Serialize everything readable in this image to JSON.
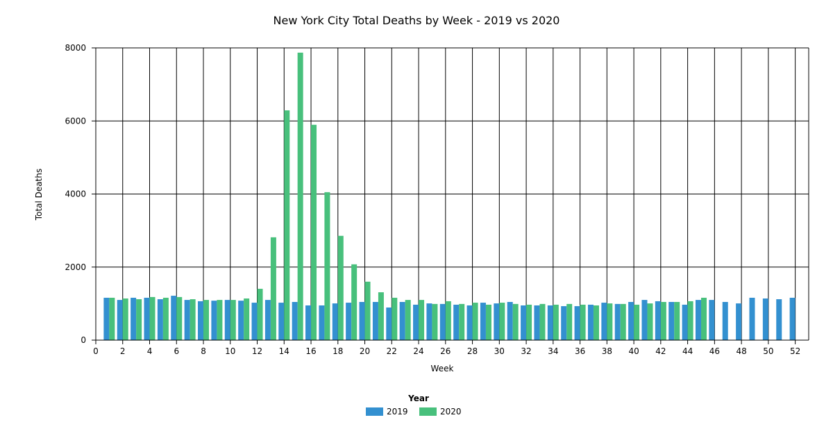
{
  "chart_data": {
    "type": "bar",
    "title": "New York City Total Deaths by Week - 2019 vs 2020",
    "xlabel": "Week",
    "ylabel": "Total Deaths",
    "xlim": [
      0,
      53
    ],
    "ylim": [
      0,
      8000
    ],
    "x_ticks": [
      0,
      2,
      4,
      6,
      8,
      10,
      12,
      14,
      16,
      18,
      20,
      22,
      24,
      26,
      28,
      30,
      32,
      34,
      36,
      38,
      40,
      42,
      44,
      46,
      48,
      50,
      52
    ],
    "y_ticks": [
      0,
      2000,
      4000,
      6000,
      8000
    ],
    "grid": true,
    "legend": {
      "title": "Year",
      "placement": "bottom-center"
    },
    "categories": [
      1,
      2,
      3,
      4,
      5,
      6,
      7,
      8,
      9,
      10,
      11,
      12,
      13,
      14,
      15,
      16,
      17,
      18,
      19,
      20,
      21,
      22,
      23,
      24,
      25,
      26,
      27,
      28,
      29,
      30,
      31,
      32,
      33,
      34,
      35,
      36,
      37,
      38,
      39,
      40,
      41,
      42,
      43,
      44,
      45,
      46,
      47,
      48,
      49,
      50,
      51,
      52
    ],
    "series": [
      {
        "name": "2019",
        "color": "#3390d0",
        "values": [
          1160,
          1100,
          1160,
          1160,
          1120,
          1215,
          1100,
          1065,
          1080,
          1100,
          1080,
          1025,
          1100,
          1025,
          1045,
          950,
          950,
          1005,
          1025,
          1045,
          1045,
          893,
          1045,
          970,
          1005,
          990,
          970,
          950,
          1025,
          1005,
          1045,
          950,
          950,
          950,
          930,
          930,
          970,
          1025,
          990,
          1045,
          1100,
          1065,
          1045,
          970,
          1100,
          1100,
          1045,
          1005,
          1160,
          1140,
          1120,
          1160
        ]
      },
      {
        "name": "2020",
        "color": "#48c07c",
        "values": [
          1160,
          1140,
          1120,
          1180,
          1160,
          1180,
          1120,
          1100,
          1100,
          1100,
          1140,
          1405,
          2815,
          6290,
          7870,
          5895,
          4050,
          2855,
          2075,
          1600,
          1310,
          1160,
          1100,
          1100,
          990,
          1065,
          990,
          1025,
          970,
          1025,
          990,
          970,
          990,
          970,
          990,
          970,
          950,
          1005,
          990,
          970,
          1005,
          1045,
          1045,
          1065,
          1160,
          null,
          null,
          null,
          null,
          null,
          null,
          null
        ]
      }
    ]
  }
}
